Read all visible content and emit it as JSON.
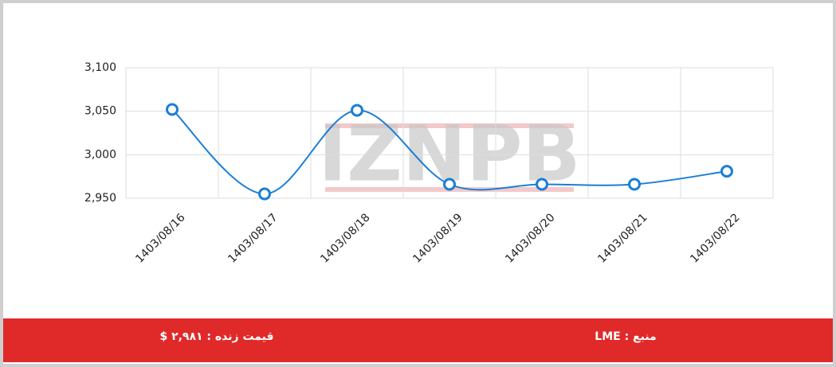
{
  "chart_data": {
    "type": "line",
    "categories": [
      "1403/08/16",
      "1403/08/17",
      "1403/08/18",
      "1403/08/19",
      "1403/08/20",
      "1403/08/21",
      "1403/08/22"
    ],
    "series": [
      {
        "color": "#1a7fd6",
        "values": [
          3052,
          2955,
          3051,
          2966,
          2966,
          2966,
          2981
        ]
      }
    ],
    "ylim": [
      2950,
      3100
    ],
    "yticks": [
      {
        "value": 2950,
        "label": "2,950"
      },
      {
        "value": 3000,
        "label": "3,000"
      },
      {
        "value": 3050,
        "label": "3,050"
      },
      {
        "value": 3100,
        "label": "3,100"
      }
    ],
    "grid": true
  },
  "watermark": "IZNPB",
  "footer": {
    "live_price": "قیمت زنده : ۲,۹۸۱ $",
    "source": "منبع : LME"
  }
}
